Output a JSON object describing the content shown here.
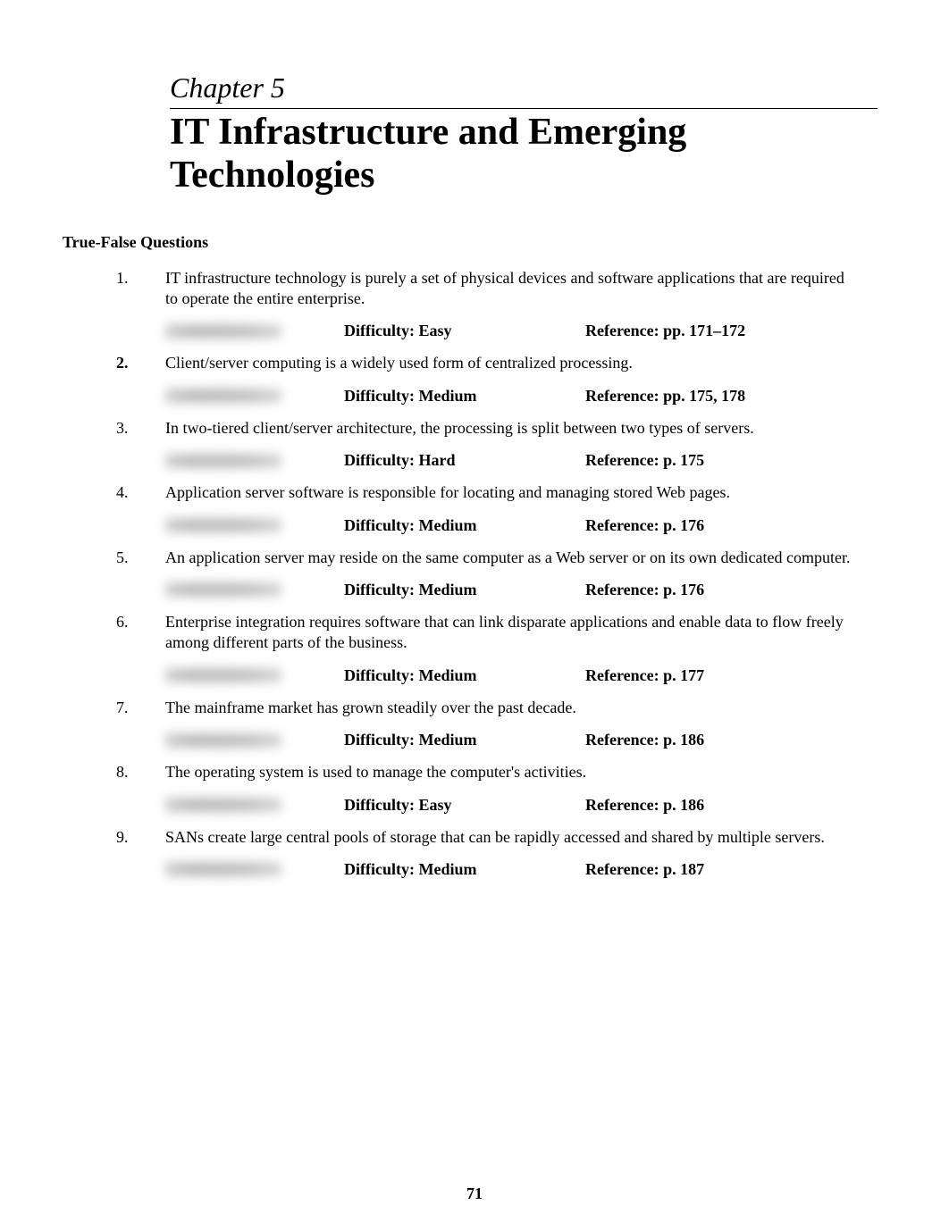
{
  "chapter_label": "Chapter 5",
  "chapter_title_line1": "IT Infrastructure and Emerging",
  "chapter_title_line2": "Technologies",
  "section_heading": "True-False Questions",
  "difficulty_label": "Difficulty:",
  "reference_label": "Reference:",
  "page_number": "71",
  "questions": [
    {
      "num": "1.",
      "num_bold": false,
      "text": "IT infrastructure technology is purely a set of physical devices and software applications that are required to operate the entire enterprise.",
      "difficulty": "Easy",
      "reference": "pp. 171–172"
    },
    {
      "num": "2.",
      "num_bold": true,
      "text": "Client/server computing is a widely used form of centralized processing.",
      "difficulty": "Medium",
      "reference": "pp. 175, 178"
    },
    {
      "num": "3.",
      "num_bold": false,
      "text": "In two-tiered client/server architecture, the processing is split between two types of servers.",
      "difficulty": "Hard",
      "reference": "p. 175"
    },
    {
      "num": "4.",
      "num_bold": false,
      "text": "Application server software is responsible for locating and managing stored Web pages.",
      "difficulty": "Medium",
      "reference": "p. 176"
    },
    {
      "num": "5.",
      "num_bold": false,
      "text": "An application server may reside on the same computer as a Web server or on its own dedicated computer.",
      "difficulty": "Medium",
      "reference": "p. 176"
    },
    {
      "num": "6.",
      "num_bold": false,
      "text": "Enterprise integration requires software that can link disparate applications and enable data to flow freely among different parts of the business.",
      "difficulty": "Medium",
      "reference": "p. 177"
    },
    {
      "num": "7.",
      "num_bold": false,
      "text": "The mainframe market has grown steadily over the past decade.",
      "difficulty": "Medium",
      "reference": "p. 186"
    },
    {
      "num": "8.",
      "num_bold": false,
      "text": "The operating system is used to manage the computer's activities.",
      "difficulty": "Easy",
      "reference": "p. 186"
    },
    {
      "num": "9.",
      "num_bold": false,
      "text": "SANs create large central pools of storage that can be rapidly accessed and shared by multiple servers.",
      "difficulty": "Medium",
      "reference": "p. 187"
    }
  ]
}
